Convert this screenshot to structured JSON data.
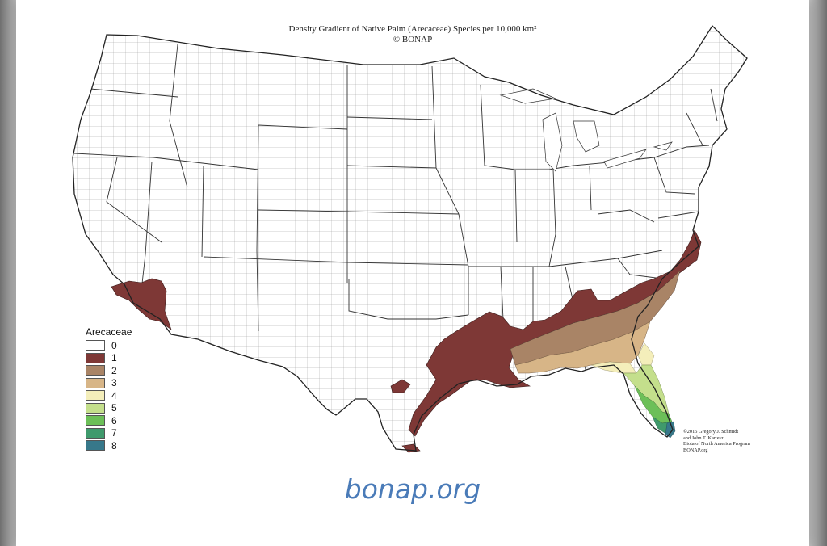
{
  "title_line1": "Density Gradient of Native Palm (Arecaceae) Species per 10,000 km²",
  "title_line2": "© BONAP",
  "legend": {
    "title": "Arecaceae",
    "items": [
      {
        "label": "0",
        "color": "#ffffff"
      },
      {
        "label": "1",
        "color": "#7e3836"
      },
      {
        "label": "2",
        "color": "#a98466"
      },
      {
        "label": "3",
        "color": "#d7b587"
      },
      {
        "label": "4",
        "color": "#f4eeba"
      },
      {
        "label": "5",
        "color": "#c4df8c"
      },
      {
        "label": "6",
        "color": "#6cbf58"
      },
      {
        "label": "7",
        "color": "#3f9a6c"
      },
      {
        "label": "8",
        "color": "#37788a"
      }
    ]
  },
  "credit": {
    "line1": "©2015 Gregory J. Schmidt",
    "line2": "and John T. Kartesz",
    "line3": "Biota of North America Program",
    "line4": "BONAP.org"
  },
  "source": "bonap.org"
}
